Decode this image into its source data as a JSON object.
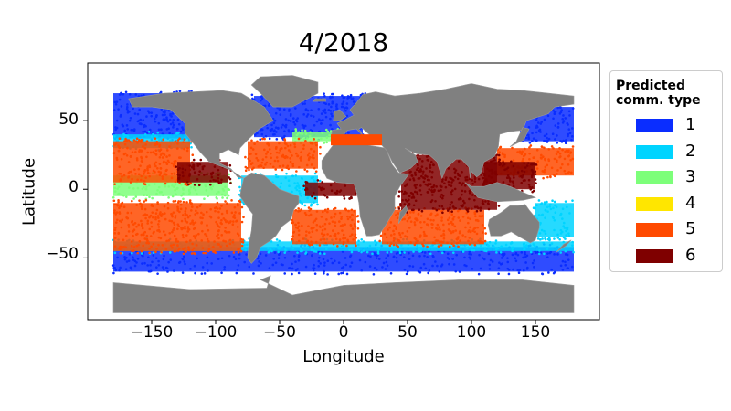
{
  "chart_data": {
    "type": "scatter",
    "title": "4/2018",
    "xlabel": "Longitude",
    "ylabel": "Latitude",
    "xlim": [
      -200,
      200
    ],
    "ylim": [
      -95,
      92
    ],
    "xticks": [
      "−150",
      "−100",
      "−50",
      "0",
      "50",
      "100",
      "150"
    ],
    "xtick_values": [
      -150,
      -100,
      -50,
      0,
      50,
      100,
      150
    ],
    "yticks": [
      "50",
      "0",
      "−50"
    ],
    "ytick_values": [
      50,
      0,
      -50
    ],
    "grid": false,
    "legend": {
      "title": "Predicted\ncomm. type",
      "placement": "right-outside",
      "entries": [
        {
          "label": "1",
          "color": "#0a2dff"
        },
        {
          "label": "2",
          "color": "#00d4ff"
        },
        {
          "label": "3",
          "color": "#7dff7a"
        },
        {
          "label": "4",
          "color": "#ffe600"
        },
        {
          "label": "5",
          "color": "#ff4a00"
        },
        {
          "label": "6",
          "color": "#7f0000"
        }
      ]
    },
    "land_color": "#808080",
    "series": [
      {
        "name": "1",
        "regions": [
          {
            "lon": [
              -180,
              -120
            ],
            "lat": [
              37,
              70
            ]
          },
          {
            "lon": [
              -180,
              180
            ],
            "lat": [
              -60,
              -42
            ]
          },
          {
            "lon": [
              -70,
              15
            ],
            "lat": [
              38,
              68
            ]
          },
          {
            "lon": [
              140,
              180
            ],
            "lat": [
              35,
              60
            ]
          }
        ]
      },
      {
        "name": "2",
        "regions": [
          {
            "lon": [
              -180,
              -120
            ],
            "lat": [
              30,
              40
            ]
          },
          {
            "lon": [
              -180,
              180
            ],
            "lat": [
              -45,
              -38
            ]
          },
          {
            "lon": [
              150,
              180
            ],
            "lat": [
              -35,
              -10
            ]
          },
          {
            "lon": [
              -80,
              -20
            ],
            "lat": [
              -10,
              10
            ]
          }
        ]
      },
      {
        "name": "3",
        "regions": [
          {
            "lon": [
              -180,
              -90
            ],
            "lat": [
              -5,
              10
            ]
          },
          {
            "lon": [
              -40,
              0
            ],
            "lat": [
              35,
              42
            ]
          }
        ]
      },
      {
        "name": "4",
        "regions": []
      },
      {
        "name": "5",
        "regions": [
          {
            "lon": [
              -180,
              -120
            ],
            "lat": [
              5,
              35
            ]
          },
          {
            "lon": [
              -180,
              -80
            ],
            "lat": [
              -45,
              -10
            ]
          },
          {
            "lon": [
              -75,
              -20
            ],
            "lat": [
              15,
              35
            ]
          },
          {
            "lon": [
              -40,
              10
            ],
            "lat": [
              -40,
              -15
            ]
          },
          {
            "lon": [
              30,
              110
            ],
            "lat": [
              -40,
              -15
            ]
          },
          {
            "lon": [
              120,
              180
            ],
            "lat": [
              10,
              30
            ]
          }
        ]
      },
      {
        "name": "6",
        "regions": [
          {
            "lon": [
              -130,
              -90
            ],
            "lat": [
              5,
              20
            ]
          },
          {
            "lon": [
              -30,
              10
            ],
            "lat": [
              -5,
              5
            ]
          },
          {
            "lon": [
              45,
              120
            ],
            "lat": [
              -15,
              25
            ]
          },
          {
            "lon": [
              110,
              150
            ],
            "lat": [
              0,
              20
            ]
          }
        ]
      }
    ]
  }
}
